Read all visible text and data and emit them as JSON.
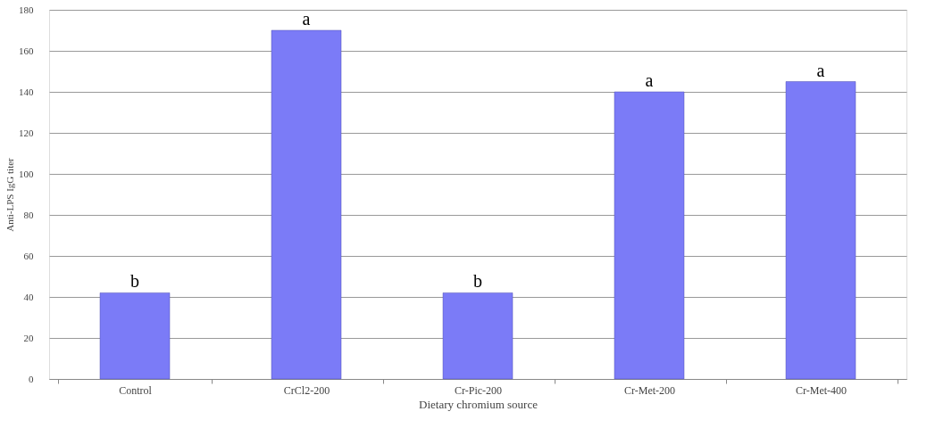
{
  "chart_data": {
    "type": "bar",
    "xlabel": "Dietary chromium source",
    "ylabel": "Anti-LPS IgG titer",
    "categories": [
      "Control",
      "CrCl2-200",
      "Cr-Pic-200",
      "Cr-Met-200",
      "Cr-Met-400"
    ],
    "values": [
      42,
      170,
      42,
      140,
      145
    ],
    "color": "#7b7bf7",
    "ylim": [
      0,
      180
    ],
    "yticks": [
      0,
      20,
      40,
      60,
      80,
      100,
      120,
      140,
      160,
      180
    ],
    "grid": "y",
    "annotations": [
      {
        "text": "b",
        "x": "Control",
        "y": 42
      },
      {
        "text": "a",
        "x": "CrCl2-200",
        "y": 170
      },
      {
        "text": "b",
        "x": "Cr-Pic-200",
        "y": 42
      },
      {
        "text": "a",
        "x": "Cr-Met-200",
        "y": 140
      },
      {
        "text": "a",
        "x": "Cr-Met-400",
        "y": 145
      }
    ]
  }
}
